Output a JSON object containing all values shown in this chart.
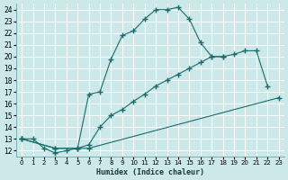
{
  "xlabel": "Humidex (Indice chaleur)",
  "bg_color": "#cce8e8",
  "grid_color": "#b0d8d8",
  "line_color": "#1a6b6b",
  "xlim": [
    -0.5,
    23.5
  ],
  "ylim": [
    11.5,
    24.5
  ],
  "yticks": [
    12,
    13,
    14,
    15,
    16,
    17,
    18,
    19,
    20,
    21,
    22,
    23,
    24
  ],
  "xticks": [
    0,
    1,
    2,
    3,
    4,
    5,
    6,
    7,
    8,
    9,
    10,
    11,
    12,
    13,
    14,
    15,
    16,
    17,
    18,
    19,
    20,
    21,
    22,
    23
  ],
  "series": [
    {
      "x": [
        0,
        1,
        2,
        3,
        4,
        5,
        6,
        7,
        8,
        9,
        10,
        11,
        12,
        13,
        14,
        15,
        16,
        17,
        18
      ],
      "y": [
        13.0,
        13.0,
        12.2,
        11.8,
        12.0,
        12.2,
        16.8,
        17.0,
        19.8,
        21.8,
        22.2,
        23.2,
        24.0,
        24.0,
        24.2,
        23.2,
        21.2,
        20.0,
        20.0
      ]
    },
    {
      "x": [
        0,
        3,
        5,
        6,
        7,
        8,
        9,
        10,
        11,
        12,
        13,
        14,
        15,
        16,
        17,
        18,
        19,
        20,
        21,
        22
      ],
      "y": [
        13.0,
        12.2,
        12.2,
        12.5,
        14.0,
        15.0,
        15.5,
        16.2,
        16.8,
        17.5,
        18.0,
        18.5,
        19.0,
        19.5,
        20.0,
        20.0,
        20.2,
        20.5,
        20.5,
        17.5
      ]
    },
    {
      "x": [
        0,
        3,
        5,
        6,
        23
      ],
      "y": [
        13.0,
        12.2,
        12.2,
        12.2,
        16.5
      ]
    }
  ]
}
